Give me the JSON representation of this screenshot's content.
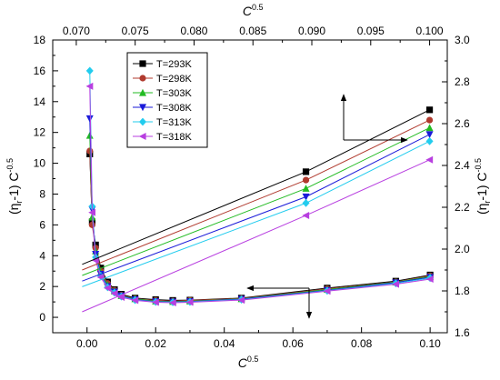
{
  "chart_data": {
    "type": "scatter",
    "axes": {
      "bottom": {
        "label_base": "C",
        "label_exp": "0.5",
        "range": [
          -0.01,
          0.105
        ],
        "ticks": [
          "0.00",
          "0.02",
          "0.04",
          "0.06",
          "0.08",
          "0.10"
        ],
        "tick_values": [
          0.0,
          0.02,
          0.04,
          0.06,
          0.08,
          0.1
        ]
      },
      "top": {
        "label_base": "C",
        "label_exp": "0.5",
        "range": [
          0.068,
          0.1015
        ],
        "ticks": [
          "0.070",
          "0.075",
          "0.080",
          "0.085",
          "0.090",
          "0.095",
          "0.100"
        ],
        "tick_values": [
          0.07,
          0.075,
          0.08,
          0.085,
          0.09,
          0.095,
          0.1
        ]
      },
      "left": {
        "label": "(ηr-1) C-0.5",
        "label_parts": [
          "(η",
          "r",
          "-1) C",
          "-0.5"
        ],
        "range": [
          -1,
          18
        ],
        "ticks": [
          "0",
          "2",
          "4",
          "6",
          "8",
          "10",
          "12",
          "14",
          "16",
          "18"
        ],
        "tick_values": [
          0,
          2,
          4,
          6,
          8,
          10,
          12,
          14,
          16,
          18
        ]
      },
      "right": {
        "label": "(ηr-1) C-0.5",
        "label_parts": [
          "(η",
          "r",
          "-1) C",
          "-0.5"
        ],
        "range": [
          1.6,
          3.0
        ],
        "ticks": [
          "1.6",
          "1.8",
          "2.0",
          "2.2",
          "2.4",
          "2.6",
          "2.8",
          "3.0"
        ],
        "tick_values": [
          1.6,
          1.8,
          2.0,
          2.2,
          2.4,
          2.6,
          2.8,
          3.0
        ]
      }
    },
    "legend_placement": "top-left",
    "grid": false,
    "series": [
      {
        "name": "T=293K",
        "color": "#000000",
        "marker": "square",
        "curve": [
          [
            0.0008,
            10.6
          ],
          [
            0.0015,
            6.2
          ],
          [
            0.0025,
            4.7
          ],
          [
            0.004,
            3.2
          ],
          [
            0.006,
            2.3
          ],
          [
            0.008,
            1.8
          ],
          [
            0.01,
            1.5
          ],
          [
            0.014,
            1.25
          ],
          [
            0.02,
            1.15
          ],
          [
            0.025,
            1.1
          ],
          [
            0.03,
            1.12
          ],
          [
            0.045,
            1.25
          ],
          [
            0.07,
            1.9
          ],
          [
            0.09,
            2.35
          ],
          [
            0.1,
            2.75
          ]
        ],
        "line": [
          [
            0.0705,
            1.927
          ],
          [
            0.0895,
            2.37
          ],
          [
            0.1,
            2.666
          ]
        ]
      },
      {
        "name": "T=298K",
        "color": "#b03a2e",
        "marker": "circle",
        "curve": [
          [
            0.0008,
            10.8
          ],
          [
            0.0015,
            6.0
          ],
          [
            0.0025,
            4.5
          ],
          [
            0.004,
            3.0
          ],
          [
            0.006,
            2.2
          ],
          [
            0.008,
            1.75
          ],
          [
            0.01,
            1.45
          ],
          [
            0.014,
            1.2
          ],
          [
            0.02,
            1.1
          ],
          [
            0.025,
            1.05
          ],
          [
            0.03,
            1.1
          ],
          [
            0.045,
            1.22
          ],
          [
            0.07,
            1.85
          ],
          [
            0.09,
            2.3
          ],
          [
            0.1,
            2.7
          ]
        ],
        "line": [
          [
            0.0705,
            1.9
          ],
          [
            0.0895,
            2.33
          ],
          [
            0.1,
            2.617
          ]
        ]
      },
      {
        "name": "T=303K",
        "color": "#22bb22",
        "marker": "triangle-up",
        "curve": [
          [
            0.0008,
            11.8
          ],
          [
            0.0015,
            6.5
          ],
          [
            0.0025,
            4.3
          ],
          [
            0.004,
            2.9
          ],
          [
            0.006,
            2.1
          ],
          [
            0.008,
            1.7
          ],
          [
            0.01,
            1.4
          ],
          [
            0.014,
            1.2
          ],
          [
            0.02,
            1.05
          ],
          [
            0.025,
            1.02
          ],
          [
            0.03,
            1.05
          ],
          [
            0.045,
            1.2
          ],
          [
            0.07,
            1.8
          ],
          [
            0.09,
            2.28
          ],
          [
            0.1,
            2.65
          ]
        ],
        "line": [
          [
            0.0705,
            1.874
          ],
          [
            0.0895,
            2.29
          ],
          [
            0.1,
            2.58
          ]
        ]
      },
      {
        "name": "T=308K",
        "color": "#1a1ad9",
        "marker": "triangle-down",
        "curve": [
          [
            0.0008,
            12.9
          ],
          [
            0.0015,
            7.0
          ],
          [
            0.0025,
            4.1
          ],
          [
            0.004,
            2.8
          ],
          [
            0.006,
            2.0
          ],
          [
            0.008,
            1.65
          ],
          [
            0.01,
            1.4
          ],
          [
            0.014,
            1.15
          ],
          [
            0.02,
            1.02
          ],
          [
            0.025,
            1.0
          ],
          [
            0.03,
            1.02
          ],
          [
            0.045,
            1.18
          ],
          [
            0.07,
            1.75
          ],
          [
            0.09,
            2.25
          ],
          [
            0.1,
            2.6
          ]
        ],
        "line": [
          [
            0.0705,
            1.847
          ],
          [
            0.0895,
            2.25
          ],
          [
            0.1,
            2.548
          ]
        ]
      },
      {
        "name": "T=313K",
        "color": "#22ccee",
        "marker": "diamond",
        "curve": [
          [
            0.0008,
            16.0
          ],
          [
            0.0015,
            7.2
          ],
          [
            0.0025,
            3.9
          ],
          [
            0.004,
            2.7
          ],
          [
            0.006,
            1.95
          ],
          [
            0.008,
            1.6
          ],
          [
            0.01,
            1.35
          ],
          [
            0.014,
            1.12
          ],
          [
            0.02,
            1.0
          ],
          [
            0.025,
            0.98
          ],
          [
            0.03,
            1.0
          ],
          [
            0.045,
            1.15
          ],
          [
            0.07,
            1.72
          ],
          [
            0.09,
            2.2
          ],
          [
            0.1,
            2.55
          ]
        ],
        "line": [
          [
            0.0705,
            1.82
          ],
          [
            0.0895,
            2.22
          ],
          [
            0.1,
            2.516
          ]
        ]
      },
      {
        "name": "T=318K",
        "color": "#b83fe0",
        "marker": "triangle-left",
        "curve": [
          [
            0.0008,
            15.0
          ],
          [
            0.0015,
            6.8
          ],
          [
            0.0025,
            3.7
          ],
          [
            0.004,
            2.6
          ],
          [
            0.006,
            1.9
          ],
          [
            0.008,
            1.55
          ],
          [
            0.01,
            1.3
          ],
          [
            0.014,
            1.1
          ],
          [
            0.02,
            0.98
          ],
          [
            0.025,
            0.95
          ],
          [
            0.03,
            0.98
          ],
          [
            0.045,
            1.12
          ],
          [
            0.07,
            1.7
          ],
          [
            0.09,
            2.15
          ],
          [
            0.1,
            2.48
          ]
        ],
        "line": [
          [
            0.0705,
            1.7
          ],
          [
            0.0895,
            2.161
          ],
          [
            0.1,
            2.427
          ]
        ]
      }
    ]
  }
}
